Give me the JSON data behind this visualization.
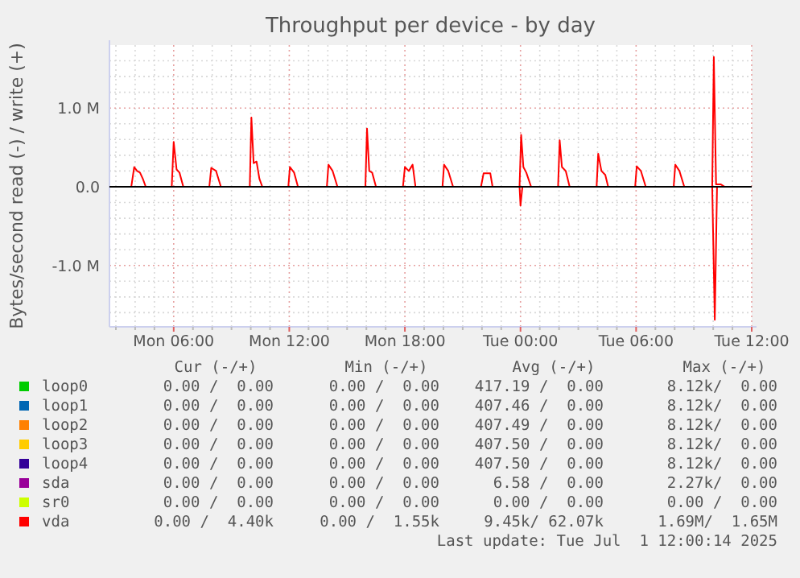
{
  "chart_data": {
    "type": "line",
    "title": "Throughput per device - by day",
    "ylabel": "Bytes/second read (-) / write (+)",
    "xlim": [
      "2025-06-30T02:40",
      "2025-07-01T12:00"
    ],
    "xticks": [
      {
        "value": "2025-06-30T03:00",
        "label": null
      },
      {
        "value": "2025-06-30T04:00",
        "label": null
      },
      {
        "value": "2025-06-30T05:00",
        "label": null
      },
      {
        "value": "2025-06-30T06:00",
        "label": "Mon 06:00"
      },
      {
        "value": "2025-06-30T07:00",
        "label": null
      },
      {
        "value": "2025-06-30T08:00",
        "label": null
      },
      {
        "value": "2025-06-30T09:00",
        "label": null
      },
      {
        "value": "2025-06-30T10:00",
        "label": null
      },
      {
        "value": "2025-06-30T11:00",
        "label": null
      },
      {
        "value": "2025-06-30T12:00",
        "label": "Mon 12:00"
      },
      {
        "value": "2025-06-30T13:00",
        "label": null
      },
      {
        "value": "2025-06-30T14:00",
        "label": null
      },
      {
        "value": "2025-06-30T15:00",
        "label": null
      },
      {
        "value": "2025-06-30T16:00",
        "label": null
      },
      {
        "value": "2025-06-30T17:00",
        "label": null
      },
      {
        "value": "2025-06-30T18:00",
        "label": "Mon 18:00"
      },
      {
        "value": "2025-06-30T19:00",
        "label": null
      },
      {
        "value": "2025-06-30T20:00",
        "label": null
      },
      {
        "value": "2025-06-30T21:00",
        "label": null
      },
      {
        "value": "2025-06-30T22:00",
        "label": null
      },
      {
        "value": "2025-06-30T23:00",
        "label": null
      },
      {
        "value": "2025-07-01T00:00",
        "label": "Tue 00:00"
      },
      {
        "value": "2025-07-01T01:00",
        "label": null
      },
      {
        "value": "2025-07-01T02:00",
        "label": null
      },
      {
        "value": "2025-07-01T03:00",
        "label": null
      },
      {
        "value": "2025-07-01T04:00",
        "label": null
      },
      {
        "value": "2025-07-01T05:00",
        "label": null
      },
      {
        "value": "2025-07-01T06:00",
        "label": "Tue 06:00"
      },
      {
        "value": "2025-07-01T07:00",
        "label": null
      },
      {
        "value": "2025-07-01T08:00",
        "label": null
      },
      {
        "value": "2025-07-01T09:00",
        "label": null
      },
      {
        "value": "2025-07-01T10:00",
        "label": null
      },
      {
        "value": "2025-07-01T11:00",
        "label": null
      },
      {
        "value": "2025-07-01T12:00",
        "label": "Tue 12:00"
      }
    ],
    "ylim": [
      -1780000,
      1800000
    ],
    "yticks": [
      {
        "value": -1600000,
        "label": null
      },
      {
        "value": -1400000,
        "label": null
      },
      {
        "value": -1200000,
        "label": null
      },
      {
        "value": -1000000,
        "label": "-1.0 M"
      },
      {
        "value": -800000,
        "label": null
      },
      {
        "value": -600000,
        "label": null
      },
      {
        "value": -400000,
        "label": null
      },
      {
        "value": -200000,
        "label": null
      },
      {
        "value": 0,
        "label": "0.0"
      },
      {
        "value": 200000,
        "label": null
      },
      {
        "value": 400000,
        "label": null
      },
      {
        "value": 600000,
        "label": null
      },
      {
        "value": 800000,
        "label": null
      },
      {
        "value": 1000000,
        "label": "1.0 M"
      },
      {
        "value": 1200000,
        "label": null
      },
      {
        "value": 1400000,
        "label": null
      },
      {
        "value": 1600000,
        "label": null
      }
    ],
    "grid": true,
    "legend": "bottom",
    "marker": "none",
    "line_style": "solid",
    "ref_lines": [
      {
        "axis": "y",
        "value": 0,
        "color": "#000000"
      }
    ],
    "series": [
      {
        "name": "loop0",
        "color": "#00cc00"
      },
      {
        "name": "loop1",
        "color": "#0066b3"
      },
      {
        "name": "loop2",
        "color": "#ff8000"
      },
      {
        "name": "loop3",
        "color": "#ffcc00"
      },
      {
        "name": "loop4",
        "color": "#330099"
      },
      {
        "name": "sda",
        "color": "#990099"
      },
      {
        "name": "sr0",
        "color": "#ccff00"
      },
      {
        "name": "vda",
        "color": "#ff0000",
        "x": [
          "2025-06-30T02:42",
          "2025-06-30T03:48",
          "2025-06-30T03:57",
          "2025-06-30T04:06",
          "2025-06-30T04:15",
          "2025-06-30T04:24",
          "2025-06-30T04:33",
          "2025-06-30T05:54",
          "2025-06-30T06:00",
          "2025-06-30T06:09",
          "2025-06-30T06:18",
          "2025-06-30T06:30",
          "2025-06-30T07:51",
          "2025-06-30T07:57",
          "2025-06-30T08:12",
          "2025-06-30T08:27",
          "2025-06-30T09:57",
          "2025-06-30T10:02",
          "2025-06-30T10:09",
          "2025-06-30T10:18",
          "2025-06-30T10:27",
          "2025-06-30T10:36",
          "2025-06-30T11:57",
          "2025-06-30T12:02",
          "2025-06-30T12:15",
          "2025-06-30T12:27",
          "2025-06-30T13:57",
          "2025-06-30T14:02",
          "2025-06-30T14:15",
          "2025-06-30T14:30",
          "2025-06-30T15:57",
          "2025-06-30T16:02",
          "2025-06-30T16:09",
          "2025-06-30T16:18",
          "2025-06-30T16:30",
          "2025-06-30T17:54",
          "2025-06-30T18:00",
          "2025-06-30T18:12",
          "2025-06-30T18:24",
          "2025-06-30T18:33",
          "2025-06-30T19:57",
          "2025-06-30T20:02",
          "2025-06-30T20:15",
          "2025-06-30T20:30",
          "2025-06-30T21:57",
          "2025-06-30T22:05",
          "2025-06-30T22:26",
          "2025-06-30T22:33",
          "2025-06-30T23:57",
          "2025-07-01T00:02",
          "2025-07-01T00:09",
          "2025-07-01T00:18",
          "2025-07-01T00:33",
          "2025-07-01T01:57",
          "2025-07-01T02:02",
          "2025-07-01T02:09",
          "2025-07-01T02:21",
          "2025-07-01T02:33",
          "2025-07-01T03:57",
          "2025-07-01T04:02",
          "2025-07-01T04:12",
          "2025-07-01T04:24",
          "2025-07-01T04:33",
          "2025-07-01T05:57",
          "2025-07-01T06:02",
          "2025-07-01T06:15",
          "2025-07-01T06:30",
          "2025-07-01T07:57",
          "2025-07-01T08:02",
          "2025-07-01T08:15",
          "2025-07-01T08:30",
          "2025-07-01T09:57",
          "2025-07-01T10:02",
          "2025-07-01T10:09",
          "2025-07-01T10:24",
          "2025-07-01T10:36",
          "2025-07-01T11:30"
        ],
        "values": [
          0,
          0,
          250000,
          200000,
          180000,
          100000,
          0,
          0,
          570000,
          220000,
          180000,
          0,
          0,
          240000,
          200000,
          0,
          0,
          880000,
          300000,
          320000,
          100000,
          0,
          0,
          250000,
          180000,
          0,
          0,
          280000,
          200000,
          0,
          0,
          740000,
          200000,
          180000,
          0,
          0,
          250000,
          200000,
          280000,
          0,
          0,
          280000,
          200000,
          0,
          0,
          170000,
          170000,
          0,
          0,
          660000,
          250000,
          180000,
          0,
          0,
          590000,
          250000,
          200000,
          0,
          0,
          420000,
          200000,
          150000,
          0,
          0,
          260000,
          200000,
          0,
          0,
          280000,
          200000,
          0,
          0,
          1650000,
          30000,
          30000,
          0,
          0
        ]
      },
      {
        "color": "#ff0000",
        "x": [
          "2025-06-30T02:42",
          "2025-06-30T23:57",
          "2025-07-01T00:00",
          "2025-07-01T00:06",
          "2025-07-01T09:57",
          "2025-07-01T10:05",
          "2025-07-01T10:12",
          "2025-07-01T11:30"
        ],
        "values": [
          0,
          0,
          -240000,
          0,
          0,
          -1690000,
          0,
          0
        ]
      }
    ],
    "annotations": [
      "Cur (-/+)",
      "Min (-/+)",
      "Avg (-/+)",
      "Max (-/+)",
      "0.00 /  0.00",
      "0.00 /  0.00",
      "417.19 /  0.00",
      "8.12k/  0.00",
      "0.00 /  0.00",
      "0.00 /  0.00",
      "407.46 /  0.00",
      "8.12k/  0.00",
      "0.00 /  0.00",
      "0.00 /  0.00",
      "407.49 /  0.00",
      "8.12k/  0.00",
      "0.00 /  0.00",
      "0.00 /  0.00",
      "407.50 /  0.00",
      "8.12k/  0.00",
      "0.00 /  0.00",
      "0.00 /  0.00",
      "407.50 /  0.00",
      "8.12k/  0.00",
      "0.00 /  0.00",
      "0.00 /  0.00",
      "6.58 /  0.00",
      "2.27k/  0.00",
      "0.00 /  0.00",
      "0.00 /  0.00",
      "0.00 /  0.00",
      "0.00 /  0.00",
      "0.00 /  4.40k",
      "0.00 /  1.55k",
      "9.45k/ 62.07k",
      "1.69M/  1.65M",
      "Last update: Tue Jul  1 12:00:14 2025"
    ]
  }
}
